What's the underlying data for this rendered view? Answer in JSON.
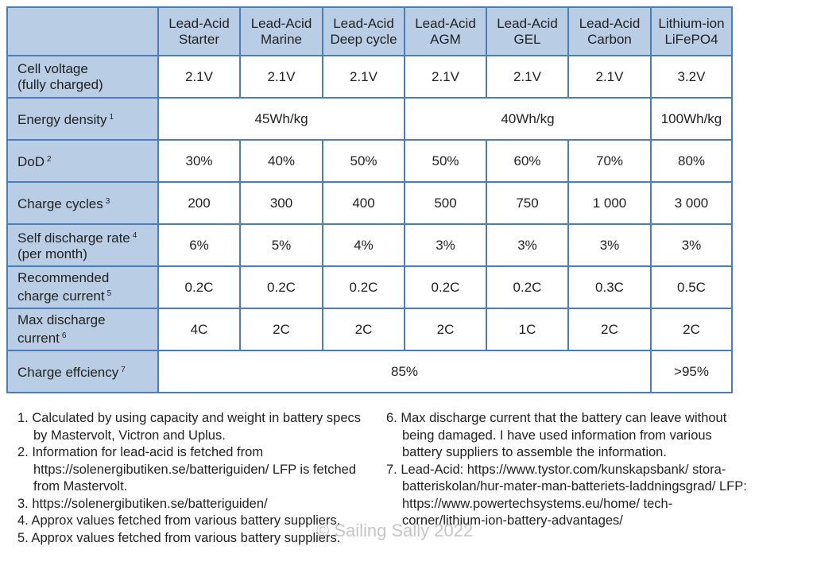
{
  "headers": [
    "",
    "Lead-Acid\nStarter",
    "Lead-Acid\nMarine",
    "Lead-Acid\nDeep cycle",
    "Lead-Acid\nAGM",
    "Lead-Acid\nGEL",
    "Lead-Acid\nCarbon",
    "Lithium-ion\nLiFePO4"
  ],
  "rows": {
    "voltage": {
      "label": "Cell voltage\n(fully charged)",
      "values": [
        "2.1V",
        "2.1V",
        "2.1V",
        "2.1V",
        "2.1V",
        "2.1V",
        "3.2V"
      ]
    },
    "energy": {
      "label": "Energy density",
      "sup": "1",
      "values": [
        "45Wh/kg",
        "40Wh/kg",
        "100Wh/kg"
      ]
    },
    "dod": {
      "label": "DoD",
      "sup": "2",
      "values": [
        "30%",
        "40%",
        "50%",
        "50%",
        "60%",
        "70%",
        "80%"
      ]
    },
    "cycles": {
      "label": "Charge cycles",
      "sup": "3",
      "values": [
        "200",
        "300",
        "400",
        "500",
        "750",
        "1 000",
        "3 000"
      ]
    },
    "selfdis": {
      "label": "Self discharge rate",
      "sup": "4",
      "label2": "(per month)",
      "values": [
        "6%",
        "5%",
        "4%",
        "3%",
        "3%",
        "3%",
        "3%"
      ]
    },
    "chargecur": {
      "label": "Recommended\ncharge current",
      "sup": "5",
      "values": [
        "0.2C",
        "0.2C",
        "0.2C",
        "0.2C",
        "0.2C",
        "0.3C",
        "0.5C"
      ]
    },
    "maxdis": {
      "label": "Max discharge\ncurrent",
      "sup": "6",
      "values": [
        "4C",
        "2C",
        "2C",
        "2C",
        "1C",
        "2C",
        "2C"
      ]
    },
    "eff": {
      "label": "Charge effciency",
      "sup": "7",
      "values": [
        "85%",
        ">95%"
      ]
    }
  },
  "notes_left": [
    "1. Calculated by using capacity and weight in battery specs by Mastervolt, Victron and Uplus.",
    "2. Information for lead-acid is fetched from https://solenergibutiken.se/batteriguiden/ LFP is fetched from Mastervolt.",
    "3. https://solenergibutiken.se/batteriguiden/",
    "4. Approx values fetched from various battery suppliers.",
    "5. Approx values fetched from various battery suppliers."
  ],
  "notes_right": [
    "6. Max discharge current that the battery can leave without being damaged. I have used information from various battery suppliers to assemble the information.",
    "7. Lead-Acid: https://www.tystor.com/kunskapsbank/ stora-batteriskolan/hur-mater-man-batteriets-laddningsgrad/ LFP: https://www.powertechsystems.eu/home/ tech-corner/lithium-ion-battery-advantages/"
  ],
  "watermark": "© Sailing Sally 2022",
  "colors": {
    "header_bg": "#b9cde5",
    "border": "#4a7ebb"
  }
}
